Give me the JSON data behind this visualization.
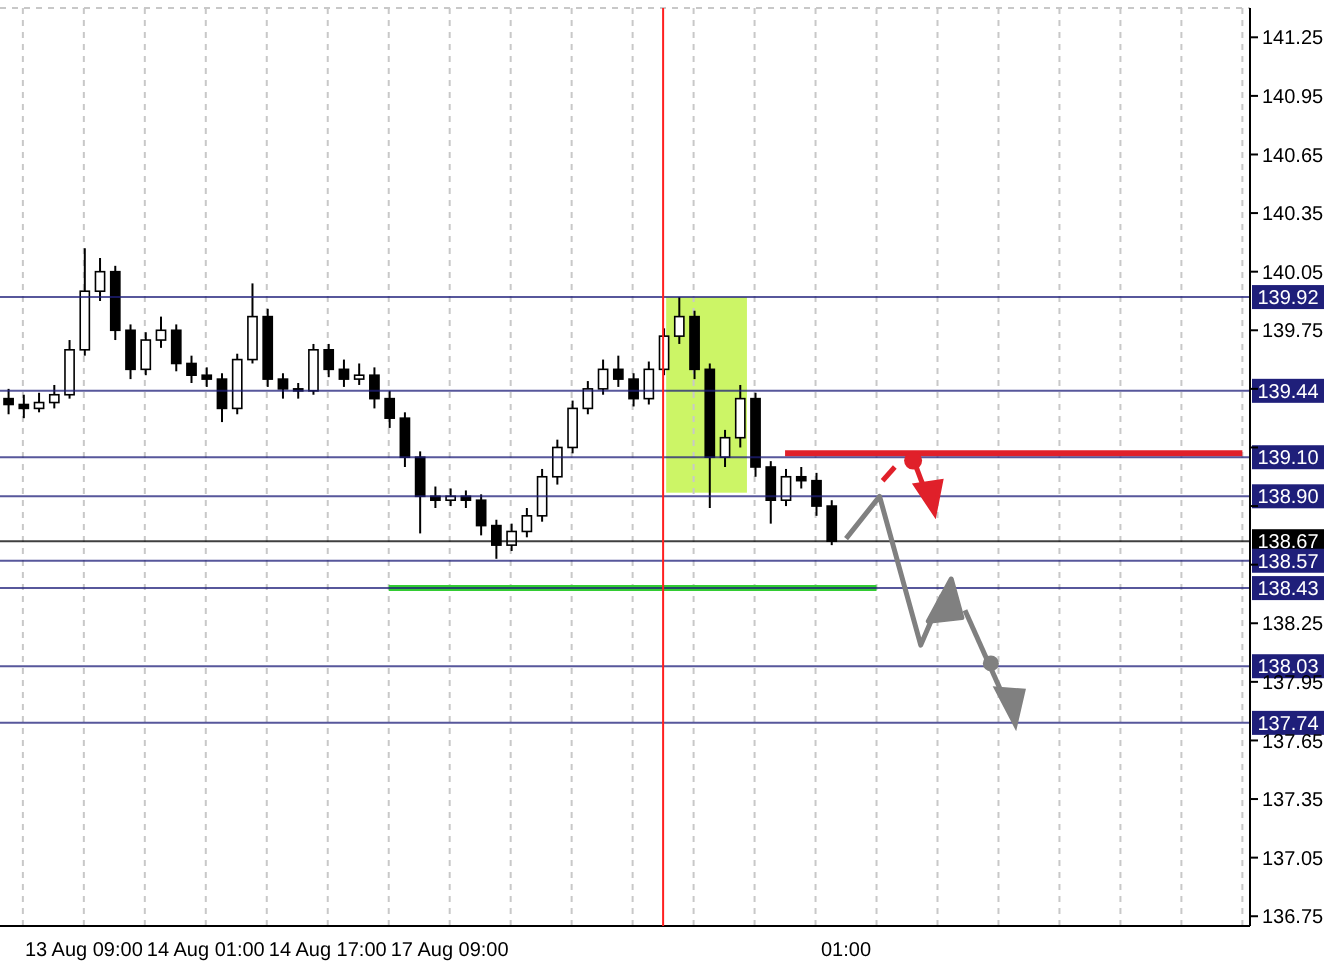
{
  "chart_data": {
    "type": "candlestick",
    "categories": [
      null,
      null,
      null,
      null,
      null,
      "13 Aug 09:00",
      null,
      null,
      null,
      null,
      null,
      null,
      null,
      "14 Aug 01:00",
      null,
      null,
      null,
      null,
      null,
      null,
      null,
      "14 Aug 17:00",
      null,
      null,
      null,
      null,
      null,
      null,
      null,
      "17 Aug 09:00",
      null,
      null,
      null,
      null,
      null,
      null,
      null,
      null,
      null,
      null,
      null,
      null,
      null,
      null,
      null,
      null,
      null,
      null,
      null,
      null,
      null,
      null,
      null,
      null,
      null,
      "01:00",
      null,
      null,
      null,
      null,
      null,
      null,
      null,
      null,
      null,
      null,
      null,
      null,
      null,
      null,
      null,
      null,
      null,
      null,
      null,
      null,
      null,
      null,
      null,
      null,
      null,
      null
    ],
    "ohlc": [
      [
        139.4,
        139.45,
        139.32,
        139.37
      ],
      [
        139.37,
        139.42,
        139.3,
        139.35
      ],
      [
        139.35,
        139.43,
        139.33,
        139.38
      ],
      [
        139.38,
        139.47,
        139.35,
        139.42
      ],
      [
        139.42,
        139.7,
        139.4,
        139.65
      ],
      [
        139.65,
        140.17,
        139.62,
        139.95
      ],
      [
        139.95,
        140.12,
        139.9,
        140.05
      ],
      [
        140.05,
        140.08,
        139.7,
        139.75
      ],
      [
        139.75,
        139.78,
        139.5,
        139.55
      ],
      [
        139.55,
        139.74,
        139.52,
        139.7
      ],
      [
        139.7,
        139.82,
        139.66,
        139.75
      ],
      [
        139.75,
        139.78,
        139.54,
        139.58
      ],
      [
        139.58,
        139.62,
        139.48,
        139.52
      ],
      [
        139.52,
        139.56,
        139.46,
        139.5
      ],
      [
        139.5,
        139.53,
        139.28,
        139.35
      ],
      [
        139.35,
        139.63,
        139.32,
        139.6
      ],
      [
        139.6,
        139.99,
        139.58,
        139.82
      ],
      [
        139.82,
        139.86,
        139.46,
        139.5
      ],
      [
        139.5,
        139.53,
        139.4,
        139.45
      ],
      [
        139.45,
        139.48,
        139.4,
        139.44
      ],
      [
        139.44,
        139.68,
        139.42,
        139.65
      ],
      [
        139.65,
        139.68,
        139.51,
        139.55
      ],
      [
        139.55,
        139.6,
        139.46,
        139.5
      ],
      [
        139.5,
        139.58,
        139.47,
        139.52
      ],
      [
        139.52,
        139.56,
        139.35,
        139.4
      ],
      [
        139.4,
        139.44,
        139.25,
        139.3
      ],
      [
        139.3,
        139.33,
        139.05,
        139.1
      ],
      [
        139.1,
        139.13,
        138.71,
        138.9
      ],
      [
        138.9,
        138.95,
        138.84,
        138.88
      ],
      [
        138.88,
        138.94,
        138.85,
        138.9
      ],
      [
        138.9,
        138.93,
        138.84,
        138.88
      ],
      [
        138.88,
        138.91,
        138.7,
        138.75
      ],
      [
        138.75,
        138.78,
        138.58,
        138.65
      ],
      [
        138.65,
        138.76,
        138.62,
        138.72
      ],
      [
        138.72,
        138.84,
        138.69,
        138.8
      ],
      [
        138.8,
        139.04,
        138.77,
        139.0
      ],
      [
        139.0,
        139.19,
        138.96,
        139.15
      ],
      [
        139.15,
        139.39,
        139.12,
        139.35
      ],
      [
        139.35,
        139.49,
        139.32,
        139.45
      ],
      [
        139.45,
        139.6,
        139.42,
        139.55
      ],
      [
        139.55,
        139.62,
        139.46,
        139.5
      ],
      [
        139.5,
        139.53,
        139.36,
        139.4
      ],
      [
        139.4,
        139.59,
        139.37,
        139.55
      ],
      [
        139.55,
        139.76,
        139.52,
        139.72
      ],
      [
        139.72,
        139.92,
        139.68,
        139.82
      ],
      [
        139.82,
        139.85,
        139.5,
        139.55
      ],
      [
        139.55,
        139.58,
        138.84,
        139.1
      ],
      [
        139.1,
        139.24,
        139.05,
        139.2
      ],
      [
        139.2,
        139.47,
        139.15,
        139.4
      ],
      [
        139.4,
        139.43,
        139.0,
        139.05
      ],
      [
        139.05,
        139.08,
        138.76,
        138.88
      ],
      [
        138.88,
        139.04,
        138.85,
        139.0
      ],
      [
        139.0,
        139.05,
        138.94,
        138.98
      ],
      [
        138.98,
        139.02,
        138.8,
        138.85
      ],
      [
        138.85,
        138.88,
        138.65,
        138.67
      ],
      null,
      null,
      null,
      null,
      null,
      null,
      null,
      null,
      null,
      null,
      null,
      null,
      null,
      null,
      null,
      null,
      null,
      null,
      null,
      null,
      null,
      null,
      null,
      null,
      null,
      null,
      null
    ],
    "series": [
      {
        "type": "line",
        "color": "#33cc33",
        "values": [
          null,
          null,
          null,
          null,
          null,
          null,
          null,
          null,
          null,
          null,
          null,
          null,
          null,
          null,
          null,
          null,
          null,
          null,
          null,
          null,
          null,
          null,
          null,
          null,
          null,
          138.43,
          138.43,
          138.43,
          138.43,
          138.43,
          138.43,
          138.43,
          138.43,
          138.43,
          138.43,
          138.43,
          138.43,
          138.43,
          138.43,
          138.43,
          138.43,
          138.43,
          138.43,
          138.43,
          138.43,
          138.43,
          138.43,
          138.43,
          138.43,
          138.43,
          138.43,
          138.43,
          138.43,
          138.43,
          138.43,
          138.43,
          138.43,
          138.43,
          null,
          null,
          null,
          null,
          null,
          null,
          null,
          null,
          null,
          null,
          null,
          null,
          null,
          null,
          null,
          null,
          null,
          null,
          null,
          null,
          null,
          null,
          null,
          null
        ]
      },
      {
        "type": "line",
        "color": "#e0202a",
        "values": [
          null,
          null,
          null,
          null,
          null,
          null,
          null,
          null,
          null,
          null,
          null,
          null,
          null,
          null,
          null,
          null,
          null,
          null,
          null,
          null,
          null,
          null,
          null,
          null,
          null,
          null,
          null,
          null,
          null,
          null,
          null,
          null,
          null,
          null,
          null,
          null,
          null,
          null,
          null,
          null,
          null,
          null,
          null,
          null,
          null,
          null,
          null,
          null,
          null,
          null,
          null,
          139.12,
          139.12,
          139.12,
          139.12,
          139.12,
          139.12,
          139.12,
          139.12,
          139.12,
          139.12,
          139.12,
          139.12,
          139.12,
          139.12,
          139.12,
          139.12,
          139.12,
          139.12,
          139.12,
          139.12,
          139.12,
          139.12,
          139.12,
          139.12,
          139.12,
          139.12,
          139.12,
          139.12,
          139.12,
          139.12,
          139.12
        ]
      }
    ],
    "ylim": [
      136.7,
      141.4
    ],
    "yticks": [
      141.25,
      140.95,
      140.65,
      140.35,
      140.05,
      139.75,
      {
        "value": 139.45,
        "label": null
      },
      {
        "value": 139.15,
        "label": null
      },
      {
        "value": 138.85,
        "label": null
      },
      {
        "value": 138.55,
        "label": null
      },
      138.25,
      137.95,
      137.65,
      137.35,
      137.05,
      136.75
    ],
    "ref_lines": [
      {
        "axis": "y",
        "value": 139.92,
        "label": "139.92",
        "color": "#1f1f7a"
      },
      {
        "axis": "y",
        "value": 139.44,
        "label": "139.44",
        "color": "#1f1f7a"
      },
      {
        "axis": "y",
        "value": 139.1,
        "label": "139.10",
        "color": "#1f1f7a"
      },
      {
        "axis": "y",
        "value": 138.9,
        "label": "138.90",
        "color": "#1f1f7a"
      },
      {
        "axis": "y",
        "value": 138.67,
        "label": "138.67",
        "color": "#000000"
      },
      {
        "axis": "y",
        "value": 138.57,
        "label": "138.57",
        "color": "#1f1f7a"
      },
      {
        "axis": "y",
        "value": 138.43,
        "label": "138.43",
        "color": "#1f1f7a"
      },
      {
        "axis": "y",
        "value": 138.03,
        "label": "138.03",
        "color": "#1f1f7a"
      },
      {
        "axis": "y",
        "value": 137.74,
        "label": "137.74",
        "color": "#1f1f7a"
      }
    ],
    "grid": true
  }
}
